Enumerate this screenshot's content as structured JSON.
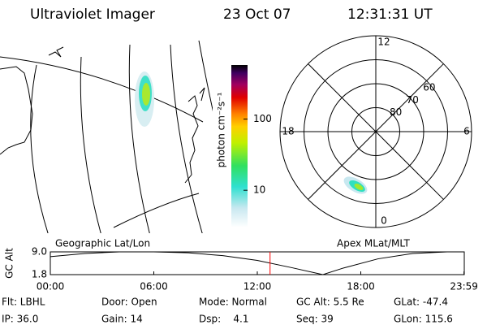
{
  "header": {
    "title": "Ultraviolet Imager",
    "date": "23 Oct 07",
    "time": "12:31:31 UT"
  },
  "map": {
    "label": "Geographic Lat/Lon"
  },
  "colorbar": {
    "label": "photon cm⁻²s⁻¹",
    "scale": "log",
    "lim": [
      3,
      575
    ],
    "ticks": [
      10,
      100
    ]
  },
  "polar": {
    "label": "Apex MLat/MLT",
    "lim": [
      90,
      50
    ],
    "rings": [
      80,
      70,
      60
    ],
    "mlt_ticks": [
      12,
      18,
      6,
      0
    ]
  },
  "timeline": {
    "ylabel": "GC Alt",
    "xlim": [
      0,
      24
    ],
    "ylim": [
      1.8,
      9
    ],
    "yticks": [
      {
        "value": 9,
        "label": "9.0"
      },
      {
        "value": 1.8,
        "label": "1.8"
      }
    ],
    "xticks": [
      {
        "value": 0,
        "label": "00:00"
      },
      {
        "value": 6,
        "label": "06:00"
      },
      {
        "value": 12,
        "label": "12:00"
      },
      {
        "value": 18,
        "label": "18:00"
      },
      {
        "value": 23.983,
        "label": "23:59"
      }
    ],
    "x": [
      0,
      2,
      4,
      6,
      8,
      10,
      12,
      14,
      15.8,
      17,
      19,
      21,
      23,
      23.983
    ],
    "values": [
      7.5,
      8.5,
      9,
      9,
      8.7,
      7.8,
      6.3,
      4,
      1.8,
      3.9,
      6.8,
      8.5,
      9,
      9
    ],
    "marker": 12.74,
    "marker_color": "#ff0000"
  },
  "info": [
    [
      "Flt: LBHL",
      "Door: Open",
      "Mode: Normal",
      "GC Alt: 5.5 Re",
      "GLat: -47.4"
    ],
    [
      "IP: 36.0",
      "Gain: 14",
      "Dsp:    4.1",
      "Seq: 39",
      "GLon: 115.6"
    ]
  ]
}
